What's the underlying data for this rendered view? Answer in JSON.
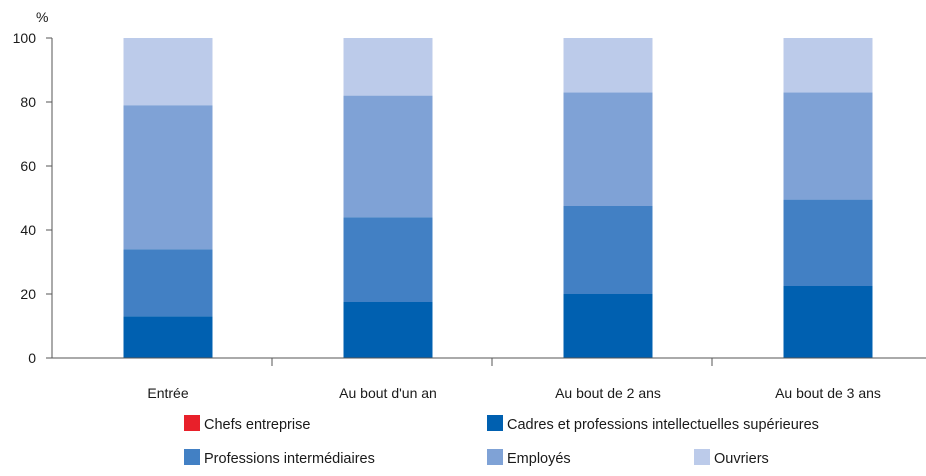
{
  "chart_data": {
    "type": "bar",
    "stacked": true,
    "unit_label": "%",
    "categories": [
      "Entrée",
      "Au bout d'un an",
      "Au bout de 2 ans",
      "Au bout de 3 ans"
    ],
    "series": [
      {
        "name": "Chefs entreprise",
        "color": "#e8202a",
        "values": [
          0,
          0,
          0,
          0
        ]
      },
      {
        "name": "Cadres et professions intellectuelles supérieures",
        "color": "#0060b0",
        "values": [
          13,
          17.5,
          20,
          22.5
        ]
      },
      {
        "name": "Professions intermédiaires",
        "color": "#4280c4",
        "values": [
          21,
          26.5,
          27.5,
          27
        ]
      },
      {
        "name": "Employés",
        "color": "#7fa2d6",
        "values": [
          45,
          38,
          35.5,
          33.5
        ]
      },
      {
        "name": "Ouvriers",
        "color": "#bccbea",
        "values": [
          21,
          18,
          17,
          17
        ]
      }
    ],
    "ylim": [
      0,
      100
    ],
    "yticks": [
      0,
      20,
      40,
      60,
      80,
      100
    ],
    "grid": false,
    "legend_position": "bottom"
  }
}
